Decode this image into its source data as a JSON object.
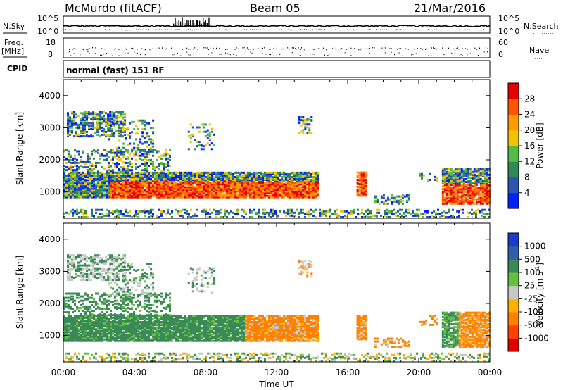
{
  "header": {
    "station": "McMurdo (fitACF)",
    "beam": "Beam 05",
    "date": "21/Mar/2016"
  },
  "panels": {
    "nsky_label": "N.Sky",
    "nsearch_label": "N.Search",
    "freq_label_1": "Freq.",
    "freq_label_2": "[MHz]",
    "nave_label": "Nave",
    "cpid_label": "CPID",
    "cpid_value": "normal (fast) 151 RF",
    "noise_left_ticks": [
      "10^5",
      "10^0"
    ],
    "noise_right_ticks": [
      "10^5",
      "10^0"
    ],
    "freq_left_ticks": [
      "18",
      "8"
    ],
    "nave_right_ticks": [
      "60",
      "0"
    ]
  },
  "chart_data": [
    {
      "type": "heatmap",
      "name": "power",
      "ylabel": "Slant Range [km]",
      "xlabel": "",
      "ylim": [
        180,
        4500
      ],
      "yticks": [
        "1000",
        "2000",
        "3000",
        "4000"
      ],
      "colorbar_label": "Power [dB]",
      "colorbar_ticks": [
        "4",
        "8",
        "12",
        "16",
        "20",
        "24",
        "28"
      ],
      "colors": [
        "#0022ff",
        "#2a55b0",
        "#2e8a55",
        "#55bb44",
        "#f2c300",
        "#ff9a00",
        "#ff5500",
        "#e60000"
      ]
    },
    {
      "type": "heatmap",
      "name": "velocity",
      "ylabel": "Slant Range [km]",
      "xlabel": "Time UT",
      "xticks": [
        "00:00",
        "04:00",
        "08:00",
        "12:00",
        "16:00",
        "20:00",
        "00:00"
      ],
      "ylim": [
        180,
        4500
      ],
      "yticks": [
        "1000",
        "2000",
        "3000",
        "4000"
      ],
      "colorbar_label": "Velocity [m s",
      "colorbar_label_sup": "-1",
      "colorbar_label_end": "]",
      "colorbar_ticks": [
        "1000",
        "500",
        "100",
        "25",
        "-25",
        "-100",
        "-500",
        "-1000"
      ],
      "colors": [
        "#1a3cc8",
        "#2f5fa8",
        "#3a8a58",
        "#66c040",
        "#c8c8c8",
        "#ffb000",
        "#ff8000",
        "#ff4000",
        "#e00000"
      ]
    }
  ]
}
